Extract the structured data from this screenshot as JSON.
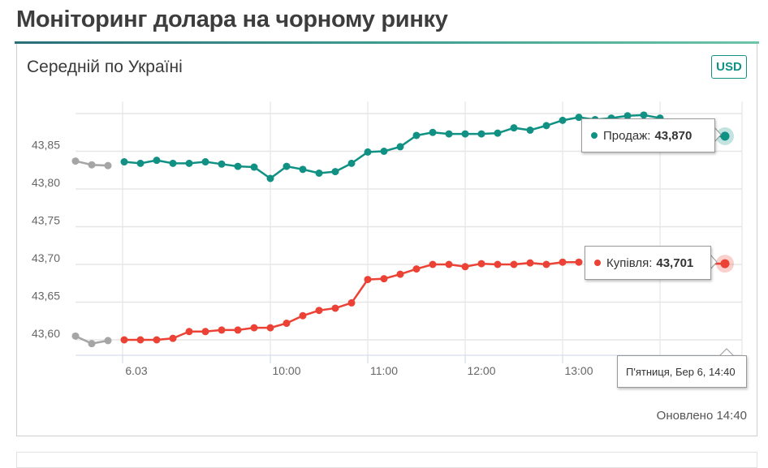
{
  "page": {
    "title": "Моніторинг долара на чорному ринку"
  },
  "card": {
    "title": "Середній по Україні",
    "currency_badge": "USD",
    "updated_label": "Оновлено 14:40"
  },
  "tooltips": {
    "sell_label": "Продаж:",
    "sell_value": "43,870",
    "buy_label": "Купівля:",
    "buy_value": "43,701",
    "date": "П'ятниця, Бер 6, 14:40"
  },
  "colors": {
    "sell": "#109184",
    "buy": "#ec4236",
    "previous": "#a5a5a5",
    "accent": "#109184"
  },
  "chart_data": {
    "type": "line",
    "title": "Середній по Україні",
    "xlabel": "",
    "ylabel": "",
    "ylim": [
      43.575,
      43.9
    ],
    "y_ticks": [
      "43,60",
      "43,65",
      "43,70",
      "43,75",
      "43,80",
      "43,85"
    ],
    "x_ticks": [
      "6.03",
      "10:00",
      "11:00",
      "12:00",
      "13:00"
    ],
    "grid": true,
    "legend": "tooltip",
    "series": [
      {
        "name": "Продаж (previous day)",
        "color": "#a5a5a5",
        "values": [
          43.837,
          43.832,
          43.831
        ]
      },
      {
        "name": "Продаж",
        "color": "#109184",
        "values": [
          43.836,
          43.834,
          43.838,
          43.834,
          43.834,
          43.836,
          43.833,
          43.83,
          43.829,
          43.814,
          43.83,
          43.826,
          43.821,
          43.823,
          43.834,
          43.849,
          43.85,
          43.856,
          43.871,
          43.875,
          43.873,
          43.873,
          43.873,
          43.874,
          43.881,
          43.878,
          43.884,
          43.891,
          43.895,
          43.892,
          43.894,
          43.897,
          43.898,
          43.894,
          43.87
        ]
      },
      {
        "name": "Купівля (previous day)",
        "color": "#a5a5a5",
        "values": [
          43.605,
          43.595,
          43.599
        ]
      },
      {
        "name": "Купівля",
        "color": "#ec4236",
        "values": [
          43.6,
          43.6,
          43.6,
          43.602,
          43.611,
          43.611,
          43.613,
          43.613,
          43.616,
          43.616,
          43.622,
          43.632,
          43.639,
          43.642,
          43.649,
          43.68,
          43.681,
          43.687,
          43.694,
          43.7,
          43.7,
          43.697,
          43.701,
          43.7,
          43.7,
          43.702,
          43.7,
          43.703,
          43.703,
          43.701
        ]
      }
    ]
  }
}
